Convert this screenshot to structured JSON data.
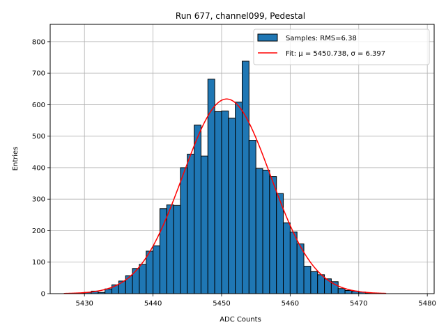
{
  "chart_data": {
    "type": "bar",
    "title": "Run 677, channel099, Pedestal",
    "xlabel": "ADC Counts",
    "ylabel": "Entries",
    "xlim": [
      5425,
      5481
    ],
    "ylim": [
      0,
      855
    ],
    "grid": true,
    "legend_position": "top-right",
    "x_ticks": [
      5430,
      5440,
      5450,
      5460,
      5470,
      5480
    ],
    "y_ticks": [
      0,
      100,
      200,
      300,
      400,
      500,
      600,
      700,
      800
    ],
    "bin_width": 1,
    "bins_start": [
      5429,
      5430,
      5431,
      5432,
      5433,
      5434,
      5435,
      5436,
      5437,
      5438,
      5439,
      5440,
      5441,
      5442,
      5443,
      5444,
      5445,
      5446,
      5447,
      5448,
      5449,
      5450,
      5451,
      5452,
      5453,
      5454,
      5455,
      5456,
      5457,
      5458,
      5459,
      5460,
      5461,
      5462,
      5463,
      5464,
      5465,
      5466,
      5467,
      5468,
      5469,
      5470,
      5471,
      5472
    ],
    "counts": [
      2,
      4,
      8,
      4,
      15,
      28,
      40,
      57,
      80,
      93,
      135,
      152,
      270,
      282,
      280,
      400,
      443,
      535,
      437,
      681,
      578,
      580,
      557,
      608,
      738,
      487,
      397,
      392,
      372,
      318,
      225,
      196,
      158,
      87,
      70,
      60,
      47,
      38,
      16,
      10,
      8,
      5,
      1,
      1
    ],
    "bar_color": "#1f77b4",
    "fit_color": "#ff0000",
    "fit": {
      "mu": 5450.738,
      "sigma": 6.397,
      "amplitude": 618,
      "x_range": [
        5427,
        5474
      ]
    },
    "legend": {
      "samples_label": "Samples: RMS=6.38",
      "fit_label": "Fit: μ = 5450.738, σ = 6.397"
    }
  }
}
